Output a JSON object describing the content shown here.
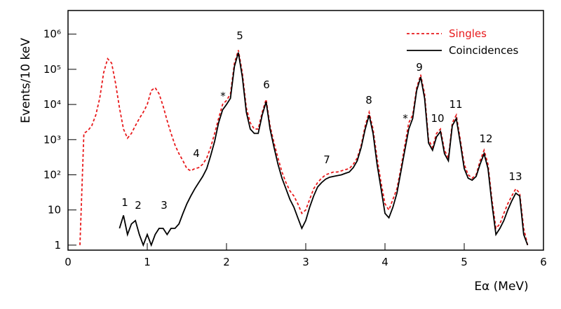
{
  "chart_data": {
    "type": "line",
    "xlabel": "Eα (MeV)",
    "ylabel": "Events/10 keV",
    "log_y": true,
    "legend": "top-right",
    "xlim": [
      0,
      6
    ],
    "xticks": [
      0,
      1,
      2,
      3,
      4,
      5,
      6
    ],
    "ylim": [
      0.72,
      4700000
    ],
    "yticks": [
      1,
      10,
      {
        "value": 100,
        "label": "10²"
      },
      {
        "value": 1000,
        "label": "10³"
      },
      {
        "value": 10000,
        "label": "10⁴"
      },
      {
        "value": 100000,
        "label": "10⁵"
      },
      {
        "value": 1000000,
        "label": "10⁶"
      }
    ],
    "annotations": [
      "1",
      "2",
      "3",
      "4",
      "5",
      "6",
      "7",
      "8",
      "9",
      "10",
      "11",
      "12",
      "13",
      "*",
      "*"
    ],
    "x": [
      0.15,
      0.2,
      0.25,
      0.3,
      0.35,
      0.4,
      0.45,
      0.5,
      0.55,
      0.6,
      0.65,
      0.7,
      0.75,
      0.8,
      0.85,
      0.9,
      0.95,
      1.0,
      1.05,
      1.1,
      1.15,
      1.2,
      1.25,
      1.3,
      1.35,
      1.4,
      1.45,
      1.5,
      1.55,
      1.6,
      1.65,
      1.7,
      1.75,
      1.8,
      1.85,
      1.9,
      1.95,
      2.0,
      2.05,
      2.1,
      2.15,
      2.2,
      2.25,
      2.3,
      2.35,
      2.4,
      2.45,
      2.5,
      2.55,
      2.6,
      2.65,
      2.7,
      2.75,
      2.8,
      2.85,
      2.9,
      2.95,
      3.0,
      3.05,
      3.1,
      3.15,
      3.2,
      3.25,
      3.3,
      3.35,
      3.4,
      3.45,
      3.5,
      3.55,
      3.6,
      3.65,
      3.7,
      3.75,
      3.8,
      3.85,
      3.9,
      3.95,
      4.0,
      4.05,
      4.1,
      4.15,
      4.2,
      4.25,
      4.3,
      4.35,
      4.4,
      4.45,
      4.5,
      4.55,
      4.6,
      4.65,
      4.7,
      4.75,
      4.8,
      4.85,
      4.9,
      4.95,
      5.0,
      5.05,
      5.1,
      5.15,
      5.2,
      5.25,
      5.3,
      5.35,
      5.4,
      5.45,
      5.5,
      5.55,
      5.6,
      5.65,
      5.7,
      5.75,
      5.8
    ],
    "series": [
      {
        "name": "Singles",
        "color": "#e8191b",
        "dash": true,
        "values": [
          1,
          1500,
          1800,
          2500,
          5000,
          15000,
          80000,
          200000,
          150000,
          40000,
          8000,
          2000,
          1100,
          1500,
          2500,
          4000,
          6000,
          10000,
          25000,
          30000,
          20000,
          9000,
          3500,
          1500,
          700,
          400,
          250,
          150,
          130,
          150,
          160,
          200,
          300,
          600,
          1500,
          4000,
          10000,
          13000,
          20000,
          150000,
          350000,
          80000,
          8000,
          3000,
          2000,
          2000,
          6000,
          14000,
          2500,
          800,
          300,
          120,
          60,
          35,
          25,
          15,
          8,
          10,
          20,
          40,
          60,
          80,
          100,
          110,
          120,
          120,
          130,
          140,
          150,
          200,
          300,
          700,
          2500,
          6000,
          2000,
          300,
          60,
          15,
          10,
          20,
          40,
          150,
          700,
          3000,
          5000,
          30000,
          70000,
          20000,
          1000,
          600,
          1500,
          2000,
          500,
          300,
          3000,
          5000,
          1000,
          200,
          100,
          80,
          100,
          250,
          500,
          200,
          20,
          3,
          4,
          8,
          15,
          25,
          40,
          30,
          3,
          1
        ]
      },
      {
        "name": "Coincidences",
        "color": "#000000",
        "dash": false,
        "values": [
          null,
          null,
          null,
          null,
          null,
          null,
          null,
          null,
          null,
          null,
          3,
          7,
          2,
          4,
          5,
          2,
          1,
          2,
          1,
          2,
          3,
          3,
          2,
          3,
          3,
          4,
          8,
          15,
          25,
          40,
          60,
          90,
          150,
          350,
          900,
          3000,
          7000,
          10000,
          15000,
          120000,
          300000,
          60000,
          6000,
          2000,
          1500,
          1500,
          5000,
          12000,
          2000,
          600,
          200,
          80,
          40,
          20,
          12,
          6,
          3,
          5,
          12,
          25,
          45,
          60,
          75,
          85,
          90,
          95,
          100,
          110,
          120,
          160,
          250,
          600,
          2000,
          5000,
          1500,
          200,
          40,
          8,
          6,
          12,
          30,
          120,
          500,
          2000,
          4000,
          25000,
          60000,
          15000,
          800,
          500,
          1200,
          1700,
          400,
          250,
          2500,
          4000,
          800,
          150,
          80,
          70,
          90,
          200,
          400,
          150,
          15,
          2,
          3,
          5,
          10,
          18,
          30,
          25,
          2,
          1
        ]
      }
    ]
  }
}
